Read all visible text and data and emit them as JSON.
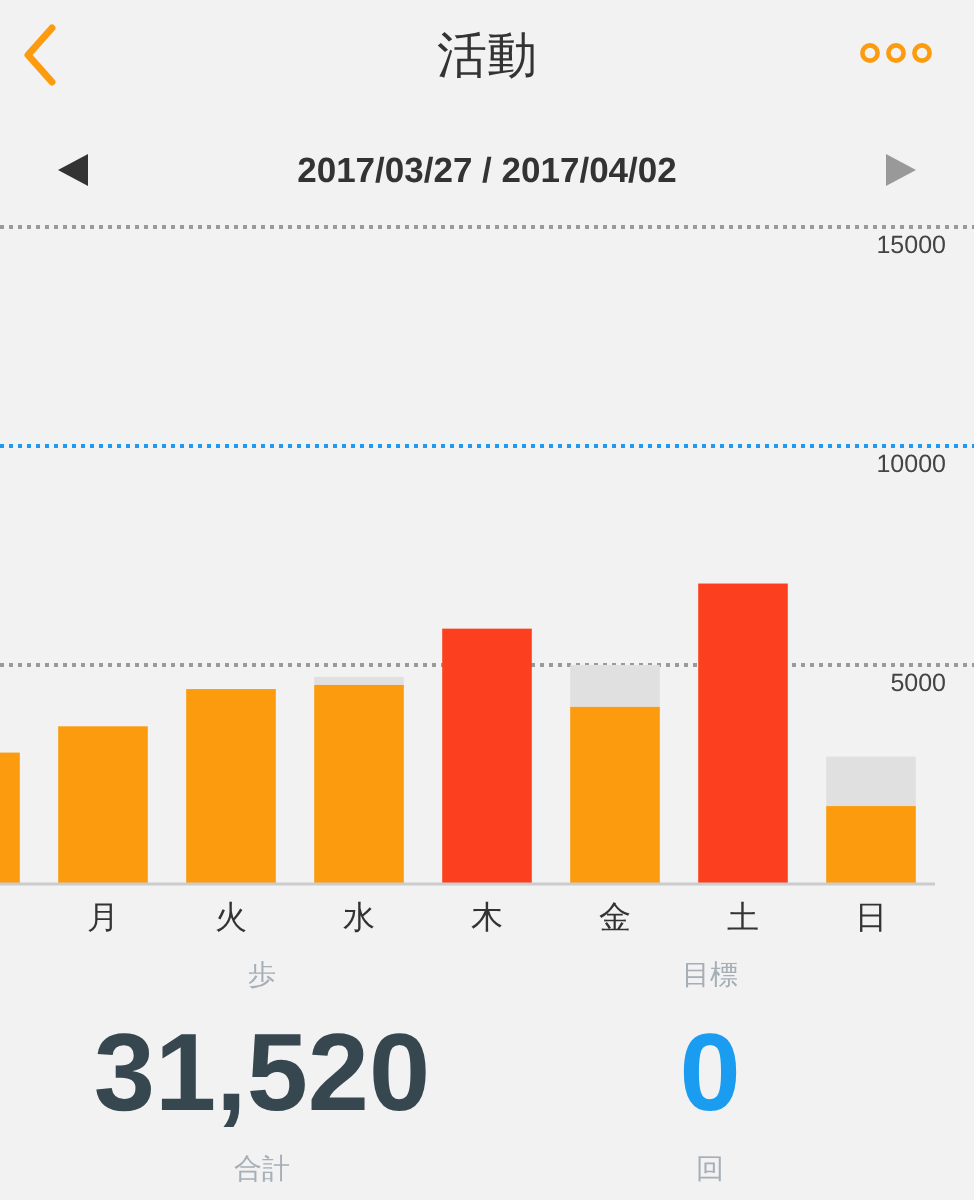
{
  "chart_data": {
    "type": "bar",
    "title": "活動",
    "subtitle": "2017/03/27 / 2017/04/02",
    "categories": [
      null,
      "月",
      "火",
      "水",
      "木",
      "金",
      "土",
      "日"
    ],
    "stacked": true,
    "series": [
      {
        "colors": [
          "#fc9b0e",
          "#fc9b0e",
          "#fc9b0e",
          "#fc9b0e",
          "#fc401f",
          "#fc9b0e",
          "#fc401f",
          "#fc9b0e"
        ],
        "values": [
          3000,
          3600,
          4450,
          4550,
          5830,
          4050,
          6860,
          1780
        ]
      },
      {
        "color": "#e0e0e0",
        "values": [
          null,
          null,
          null,
          180,
          null,
          950,
          null,
          1130
        ]
      }
    ],
    "ylim": [
      0,
      15000
    ],
    "yticks": [
      5000,
      10000,
      15000
    ],
    "ref_lines": [
      {
        "axis": "y",
        "value": 5000,
        "color": "#9a9a9a",
        "line_style": "dotted"
      },
      {
        "axis": "y",
        "value": 10000,
        "color": "#1e9bf0",
        "line_style": "dotted"
      },
      {
        "axis": "y",
        "value": 15000,
        "color": "#9a9a9a",
        "line_style": "dotted"
      }
    ],
    "annotations": [
      "歩",
      "31,520",
      "合計",
      "目標",
      "0",
      "回"
    ]
  }
}
